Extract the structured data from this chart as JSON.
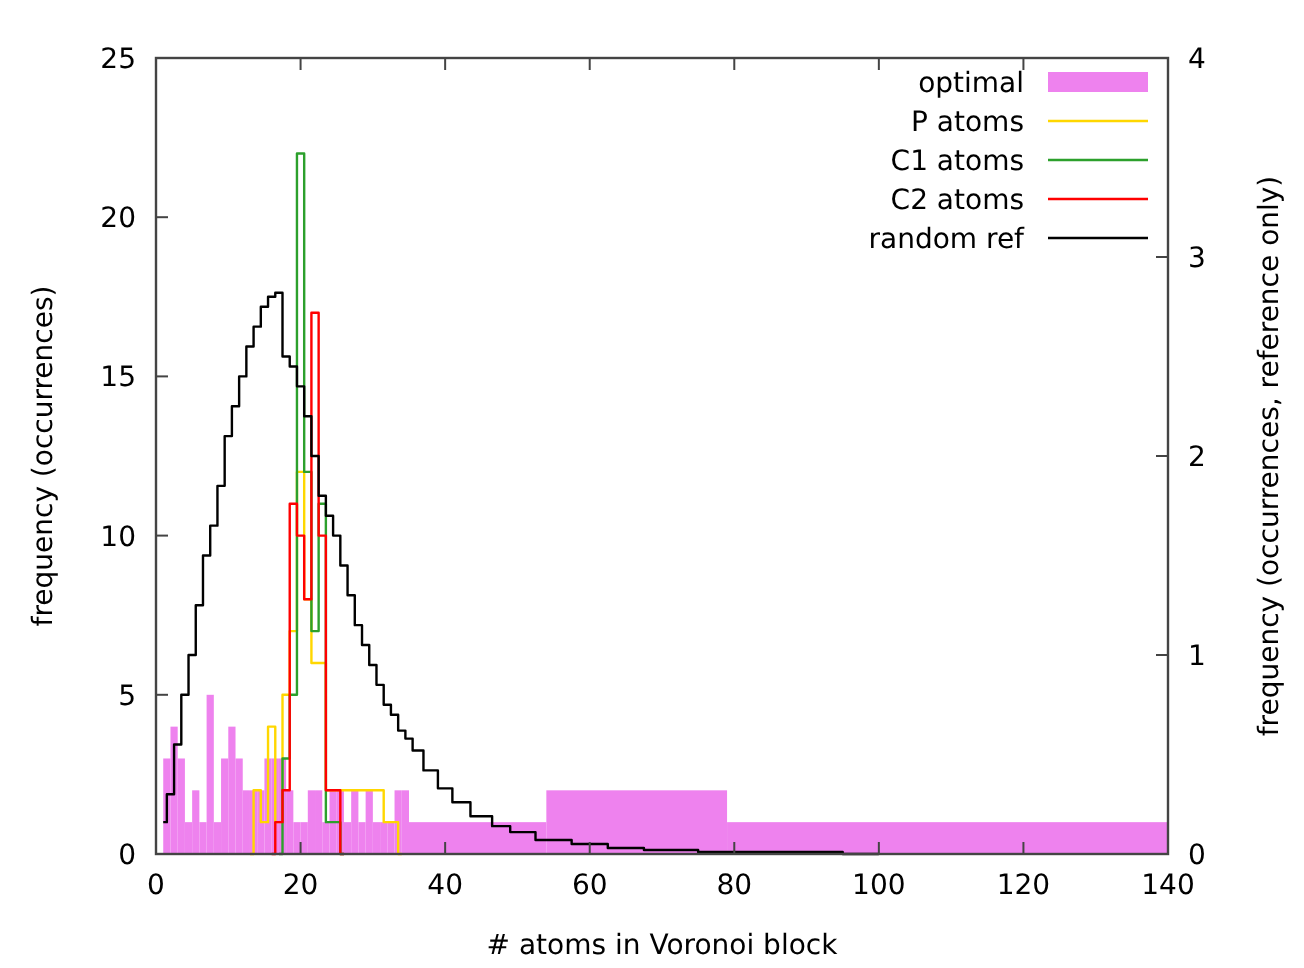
{
  "chart_data": {
    "type": "step",
    "xlabel": "# atoms in Voronoi block",
    "ylabel": "frequency (occurrences)",
    "y2label": "frequency (occurrences, reference only)",
    "xlim": [
      0,
      140
    ],
    "xticks": [
      0,
      20,
      40,
      60,
      80,
      100,
      120,
      140
    ],
    "ylim": [
      0,
      25
    ],
    "yticks": [
      0,
      5,
      10,
      15,
      20,
      25
    ],
    "y2lim": [
      0,
      4
    ],
    "y2ticks": [
      0,
      1,
      2,
      3,
      4
    ],
    "legend": "top right",
    "grid": false,
    "bins": [
      1,
      2,
      3,
      4,
      5,
      6,
      7,
      8,
      9,
      10,
      11,
      12,
      13,
      14,
      15,
      16,
      17,
      18,
      19,
      20,
      21,
      22,
      23,
      24,
      25,
      26,
      27,
      28,
      29,
      30,
      31,
      32,
      33,
      34,
      35,
      54,
      79,
      140
    ],
    "series": [
      {
        "name": "optimal",
        "type": "histogram",
        "color": "#ee82ee",
        "values": [
          3,
          4,
          3,
          1,
          2,
          1,
          5,
          1,
          3,
          4,
          3,
          2,
          2,
          2,
          3,
          3,
          3,
          2,
          1,
          1,
          2,
          2,
          1,
          2,
          2,
          1,
          2,
          1,
          2,
          1,
          1,
          1,
          2,
          2,
          1,
          2,
          1
        ]
      },
      {
        "name": "P atoms",
        "color": "#ffd700",
        "x": [
          13,
          14,
          15,
          16,
          17,
          18,
          19,
          20,
          21,
          22,
          23,
          24,
          25,
          26,
          27,
          28,
          29,
          30,
          31,
          32,
          33,
          34
        ],
        "values": [
          0,
          2,
          1,
          4,
          1,
          5,
          7,
          12,
          8,
          6,
          6,
          2,
          2,
          2,
          2,
          2,
          2,
          2,
          2,
          1,
          1,
          0
        ]
      },
      {
        "name": "C1 atoms",
        "color": "#2ca02c",
        "x": [
          17,
          18,
          19,
          20,
          21,
          22,
          23,
          24,
          25,
          26
        ],
        "values": [
          0,
          3,
          5,
          22,
          12,
          7,
          11,
          1,
          1,
          0
        ]
      },
      {
        "name": "C2 atoms",
        "color": "#ff0000",
        "x": [
          16,
          17,
          18,
          19,
          20,
          21,
          22,
          23,
          24,
          25,
          26
        ],
        "values": [
          0,
          1,
          2,
          11,
          10,
          8,
          17,
          10,
          2,
          2,
          0
        ]
      },
      {
        "name": "random ref",
        "axis": "y2",
        "color": "#000000",
        "x": [
          1,
          2,
          3,
          4,
          5,
          6,
          7,
          8,
          9,
          10,
          11,
          12,
          13,
          14,
          15,
          16,
          17,
          18,
          19,
          20,
          21,
          22,
          23,
          24,
          25,
          26,
          27,
          28,
          29,
          30,
          31,
          32,
          33,
          34,
          35,
          36,
          38,
          40,
          42,
          45,
          48,
          50,
          55,
          60,
          65,
          70,
          80,
          90,
          100
        ],
        "values": [
          0.16,
          0.3,
          0.55,
          0.8,
          1.0,
          1.25,
          1.5,
          1.65,
          1.85,
          2.1,
          2.25,
          2.4,
          2.55,
          2.65,
          2.75,
          2.8,
          2.82,
          2.5,
          2.45,
          2.35,
          2.2,
          2.0,
          1.8,
          1.7,
          1.6,
          1.45,
          1.3,
          1.15,
          1.05,
          0.95,
          0.85,
          0.75,
          0.7,
          0.62,
          0.58,
          0.52,
          0.42,
          0.33,
          0.26,
          0.19,
          0.14,
          0.11,
          0.07,
          0.05,
          0.03,
          0.02,
          0.01,
          0.01,
          0
        ]
      }
    ]
  }
}
